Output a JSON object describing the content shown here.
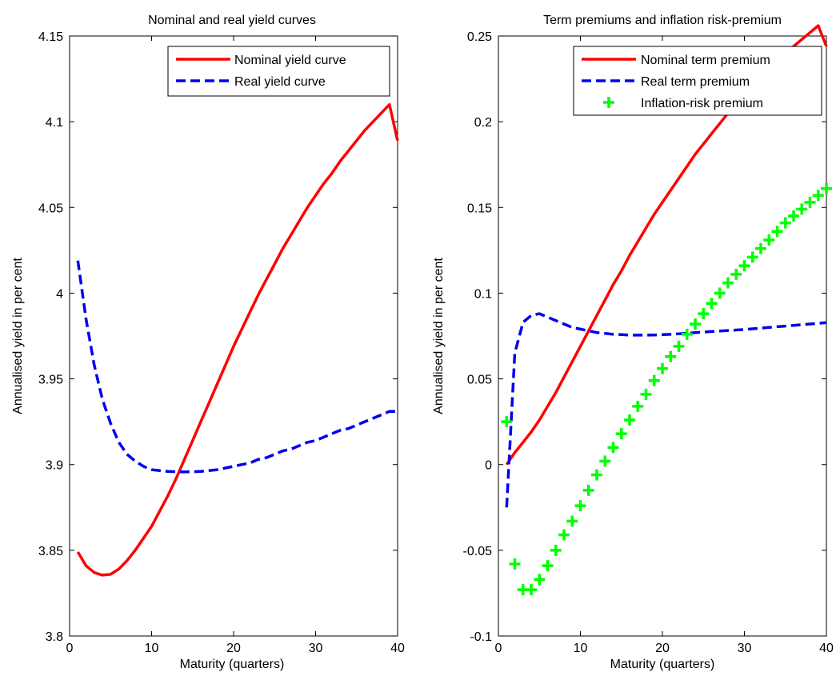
{
  "chart_data": [
    {
      "type": "line",
      "title": "Nominal and real yield curves",
      "xlabel": "Maturity (quarters)",
      "ylabel": "Annualised yield in per cent",
      "xlim": [
        0,
        40
      ],
      "ylim": [
        3.8,
        4.15
      ],
      "xticks": [
        0,
        10,
        20,
        30,
        40
      ],
      "yticks": [
        3.8,
        3.85,
        3.9,
        3.95,
        4.0,
        4.05,
        4.1,
        4.15
      ],
      "ytick_labels": [
        "3.8",
        "3.85",
        "3.9",
        "3.95",
        "4",
        "4.05",
        "4.1",
        "4.15"
      ],
      "grid": false,
      "legend_position": "top-right",
      "series": [
        {
          "name": "Nominal yield curve",
          "color": "#ff0000",
          "style": "solid",
          "x": [
            1,
            2,
            3,
            4,
            5,
            6,
            7,
            8,
            9,
            10,
            11,
            12,
            13,
            14,
            15,
            16,
            17,
            18,
            19,
            20,
            21,
            22,
            23,
            24,
            25,
            26,
            27,
            28,
            29,
            30,
            31,
            32,
            33,
            34,
            35,
            36,
            37,
            38,
            39,
            40
          ],
          "values": [
            3.849,
            3.841,
            3.837,
            3.8355,
            3.836,
            3.839,
            3.844,
            3.85,
            3.857,
            3.864,
            3.873,
            3.882,
            3.892,
            3.903,
            3.914,
            3.925,
            3.936,
            3.947,
            3.958,
            3.969,
            3.979,
            3.989,
            3.999,
            4.008,
            4.017,
            4.026,
            4.034,
            4.042,
            4.05,
            4.057,
            4.064,
            4.07,
            4.077,
            4.083,
            4.089,
            4.095,
            4.1,
            4.105,
            4.11,
            4.089
          ]
        },
        {
          "name": "Real yield curve",
          "color": "#0000ee",
          "style": "dashed",
          "x": [
            1,
            2,
            3,
            4,
            5,
            6,
            7,
            8,
            9,
            10,
            11,
            12,
            13,
            14,
            15,
            16,
            17,
            18,
            19,
            20,
            21,
            22,
            23,
            24,
            25,
            26,
            27,
            28,
            29,
            30,
            31,
            32,
            33,
            34,
            35,
            36,
            37,
            38,
            39,
            40
          ],
          "values": [
            4.019,
            3.985,
            3.958,
            3.938,
            3.924,
            3.913,
            3.906,
            3.902,
            3.899,
            3.897,
            3.8965,
            3.896,
            3.8958,
            3.8957,
            3.8958,
            3.896,
            3.8965,
            3.897,
            3.898,
            3.899,
            3.9,
            3.901,
            3.903,
            3.904,
            3.906,
            3.908,
            3.909,
            3.911,
            3.913,
            3.914,
            3.916,
            3.918,
            3.92,
            3.921,
            3.923,
            3.925,
            3.927,
            3.929,
            3.931,
            3.931
          ]
        }
      ]
    },
    {
      "type": "line",
      "title": "Term premiums and inflation risk-premium",
      "xlabel": "Maturity (quarters)",
      "ylabel": "Annualised yield in per cent",
      "xlim": [
        0,
        40
      ],
      "ylim": [
        -0.1,
        0.25
      ],
      "xticks": [
        0,
        10,
        20,
        30,
        40
      ],
      "yticks": [
        -0.1,
        -0.05,
        0,
        0.05,
        0.1,
        0.15,
        0.2,
        0.25
      ],
      "ytick_labels": [
        "-0.1",
        "-0.05",
        "0",
        "0.05",
        "0.1",
        "0.15",
        "0.2",
        "0.25"
      ],
      "grid": false,
      "legend_position": "top-right",
      "series": [
        {
          "name": "Nominal term premium",
          "color": "#ff0000",
          "style": "solid",
          "x": [
            1,
            2,
            3,
            4,
            5,
            6,
            7,
            8,
            9,
            10,
            11,
            12,
            13,
            14,
            15,
            16,
            17,
            18,
            19,
            20,
            21,
            22,
            23,
            24,
            25,
            26,
            27,
            28,
            29,
            30,
            31,
            32,
            33,
            34,
            35,
            36,
            37,
            38,
            39,
            40
          ],
          "values": [
            0.0,
            0.007,
            0.013,
            0.019,
            0.026,
            0.034,
            0.042,
            0.051,
            0.06,
            0.069,
            0.078,
            0.087,
            0.096,
            0.105,
            0.113,
            0.122,
            0.13,
            0.138,
            0.146,
            0.153,
            0.16,
            0.167,
            0.174,
            0.181,
            0.187,
            0.193,
            0.199,
            0.205,
            0.211,
            0.216,
            0.221,
            0.226,
            0.231,
            0.236,
            0.24,
            0.244,
            0.248,
            0.252,
            0.256,
            0.244
          ]
        },
        {
          "name": "Real term premium",
          "color": "#0000ee",
          "style": "dashed",
          "x": [
            1,
            2,
            3,
            4,
            5,
            6,
            7,
            8,
            9,
            10,
            11,
            12,
            13,
            14,
            15,
            16,
            17,
            18,
            19,
            20,
            21,
            22,
            23,
            24,
            25,
            26,
            27,
            28,
            29,
            30,
            31,
            32,
            33,
            34,
            35,
            36,
            37,
            38,
            39,
            40
          ],
          "values": [
            -0.025,
            0.065,
            0.083,
            0.087,
            0.088,
            0.086,
            0.084,
            0.082,
            0.08,
            0.079,
            0.078,
            0.077,
            0.0765,
            0.076,
            0.0758,
            0.0755,
            0.0755,
            0.0755,
            0.0756,
            0.0758,
            0.076,
            0.0763,
            0.0766,
            0.077,
            0.0773,
            0.0776,
            0.0779,
            0.0782,
            0.0785,
            0.0788,
            0.0792,
            0.0796,
            0.08,
            0.0804,
            0.0808,
            0.0812,
            0.0816,
            0.082,
            0.0824,
            0.0828
          ]
        },
        {
          "name": "Inflation-risk premium",
          "color": "#00ff00",
          "style": "markers",
          "x": [
            1,
            2,
            3,
            4,
            5,
            6,
            7,
            8,
            9,
            10,
            11,
            12,
            13,
            14,
            15,
            16,
            17,
            18,
            19,
            20,
            21,
            22,
            23,
            24,
            25,
            26,
            27,
            28,
            29,
            30,
            31,
            32,
            33,
            34,
            35,
            36,
            37,
            38,
            39,
            40
          ],
          "values": [
            0.025,
            -0.058,
            -0.073,
            -0.073,
            -0.067,
            -0.059,
            -0.05,
            -0.041,
            -0.033,
            -0.024,
            -0.015,
            -0.006,
            0.002,
            0.01,
            0.018,
            0.026,
            0.034,
            0.041,
            0.049,
            0.056,
            0.063,
            0.069,
            0.076,
            0.082,
            0.088,
            0.094,
            0.1,
            0.106,
            0.111,
            0.116,
            0.121,
            0.126,
            0.131,
            0.136,
            0.141,
            0.145,
            0.149,
            0.153,
            0.157,
            0.161
          ]
        }
      ]
    }
  ]
}
